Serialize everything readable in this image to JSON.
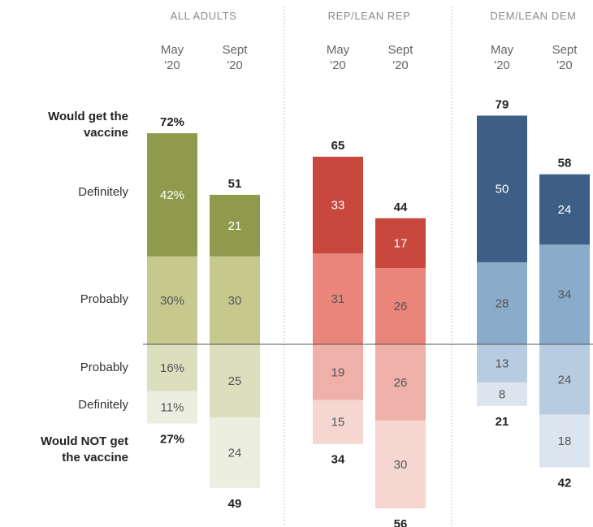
{
  "chart_data": {
    "type": "bar",
    "subtype": "diverging-stacked",
    "groups": [
      {
        "title": "ALL ADULTS",
        "bars": [
          {
            "label_line1": "May",
            "label_line2": "'20",
            "would_get": 72,
            "definitely_yes": 42,
            "probably_yes": 30,
            "probably_no": 16,
            "definitely_no": 11,
            "would_not": 27,
            "top_total_label": "72%",
            "bottom_total_label": "27%",
            "definitely_yes_label": "42%",
            "probably_yes_label": "30%",
            "probably_no_label": "16%",
            "definitely_no_label": "11%"
          },
          {
            "label_line1": "Sept",
            "label_line2": "'20",
            "would_get": 51,
            "definitely_yes": 21,
            "probably_yes": 30,
            "probably_no": 25,
            "definitely_no": 24,
            "would_not": 49,
            "top_total_label": "51",
            "bottom_total_label": "49",
            "definitely_yes_label": "21",
            "probably_yes_label": "30",
            "probably_no_label": "25",
            "definitely_no_label": "24"
          }
        ],
        "colors": {
          "definitely_yes": "#8f9a4c",
          "probably_yes": "#c5c98e",
          "probably_no": "#dcdfbd",
          "definitely_no": "#eceee0"
        }
      },
      {
        "title": "REP/LEAN REP",
        "bars": [
          {
            "label_line1": "May",
            "label_line2": "'20",
            "would_get": 65,
            "definitely_yes": 33,
            "probably_yes": 31,
            "probably_no": 19,
            "definitely_no": 15,
            "would_not": 34,
            "top_total_label": "65",
            "bottom_total_label": "34",
            "definitely_yes_label": "33",
            "probably_yes_label": "31",
            "probably_no_label": "19",
            "definitely_no_label": "15"
          },
          {
            "label_line1": "Sept",
            "label_line2": "'20",
            "would_get": 44,
            "definitely_yes": 17,
            "probably_yes": 26,
            "probably_no": 26,
            "definitely_no": 30,
            "would_not": 56,
            "top_total_label": "44",
            "bottom_total_label": "56",
            "definitely_yes_label": "17",
            "probably_yes_label": "26",
            "probably_no_label": "26",
            "definitely_no_label": "30"
          }
        ],
        "colors": {
          "definitely_yes": "#c9483d",
          "probably_yes": "#e9857b",
          "probably_no": "#eeb0a8",
          "definitely_no": "#f5d6d1"
        }
      },
      {
        "title": "DEM/LEAN DEM",
        "bars": [
          {
            "label_line1": "May",
            "label_line2": "'20",
            "would_get": 79,
            "definitely_yes": 50,
            "probably_yes": 28,
            "probably_no": 13,
            "definitely_no": 8,
            "would_not": 21,
            "top_total_label": "79",
            "bottom_total_label": "21",
            "definitely_yes_label": "50",
            "probably_yes_label": "28",
            "probably_no_label": "13",
            "definitely_no_label": "8"
          },
          {
            "label_line1": "Sept",
            "label_line2": "'20",
            "would_get": 58,
            "definitely_yes": 24,
            "probably_yes": 34,
            "probably_no": 24,
            "definitely_no": 18,
            "would_not": 42,
            "top_total_label": "58",
            "bottom_total_label": "42",
            "definitely_yes_label": "24",
            "probably_yes_label": "34",
            "probably_no_label": "24",
            "definitely_no_label": "18"
          }
        ],
        "colors": {
          "definitely_yes": "#3d5f85",
          "probably_yes": "#8aaccb",
          "probably_no": "#b7cce0",
          "definitely_no": "#dbe5ef"
        }
      }
    ],
    "row_labels": {
      "would_get_line1": "Would get the",
      "would_get_line2": "vaccine",
      "definitely_top": "Definitely",
      "probably_top": "Probably",
      "probably_bottom": "Probably",
      "definitely_bottom": "Definitely",
      "would_not_line1": "Would NOT get",
      "would_not_line2": "the vaccine"
    },
    "value_label_colors": {
      "on_dark": "#ffffff",
      "on_light": "#555555",
      "total": "#222222"
    }
  }
}
